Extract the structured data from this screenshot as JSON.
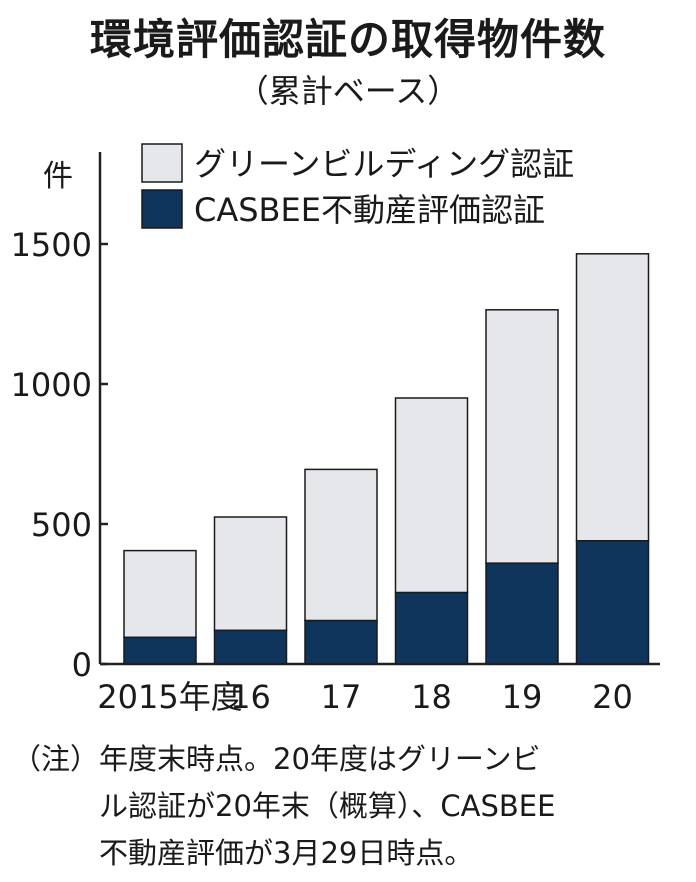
{
  "title": "環境評価認証の取得物件数",
  "subtitle": "（累計ベース）",
  "note": "（注）年度末時点。20年度はグリーンビ\n　　　ル認証が20年末（概算）、CASBEE\n　　　不動産評価が3月29日時点。",
  "chart_data": {
    "type": "bar",
    "stacked": true,
    "title": "環境評価認証の取得物件数",
    "subtitle": "（累計ベース）",
    "ylabel": "件",
    "ylim": [
      0,
      1800
    ],
    "yticks": [
      0,
      500,
      1000,
      1500
    ],
    "categories": [
      "2015年度",
      "16",
      "17",
      "18",
      "19",
      "20"
    ],
    "series": [
      {
        "name": "CASBEE不動産評価認証",
        "color": "#0f355c",
        "values": [
          95,
          120,
          155,
          255,
          360,
          440
        ]
      },
      {
        "name": "グリーンビルディング認証",
        "color": "#e6e7ea",
        "values": [
          310,
          405,
          540,
          695,
          905,
          1025
        ]
      }
    ],
    "totals": [
      405,
      525,
      695,
      950,
      1265,
      1465
    ],
    "legend_position": "top-right"
  }
}
